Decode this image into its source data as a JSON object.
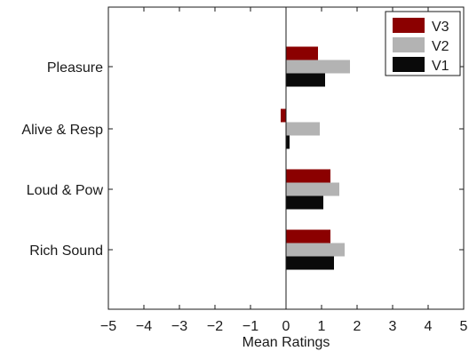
{
  "chart_data": {
    "type": "bar",
    "orientation": "horizontal",
    "categories": [
      "Pleasure",
      "Alive & Resp",
      "Loud & Pow",
      "Rich Sound"
    ],
    "series": [
      {
        "name": "V3",
        "color": "#8b0000",
        "values": [
          0.9,
          -0.15,
          1.25,
          1.25
        ]
      },
      {
        "name": "V2",
        "color": "#b3b3b3",
        "values": [
          1.8,
          0.95,
          1.5,
          1.65
        ]
      },
      {
        "name": "V1",
        "color": "#0a0a0a",
        "values": [
          1.1,
          0.1,
          1.05,
          1.35
        ]
      }
    ],
    "xlabel": "Mean Ratings",
    "ylabel": "",
    "xlim": [
      -5,
      5
    ],
    "xticks": [
      -5,
      -4,
      -3,
      -2,
      -1,
      0,
      1,
      2,
      3,
      4,
      5
    ],
    "grid": false,
    "legend": {
      "position": "top-right",
      "entries": [
        "V3",
        "V2",
        "V1"
      ]
    }
  }
}
